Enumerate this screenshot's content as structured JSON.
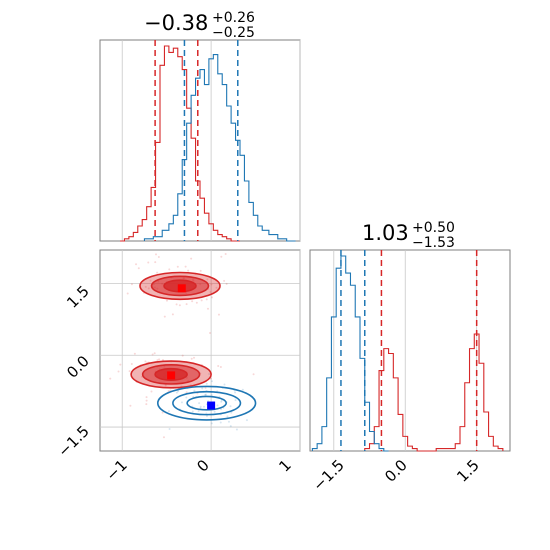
{
  "colors": {
    "red": "#d62728",
    "blue": "#1f77b4",
    "grid": "#c8c8c8",
    "frame": "#7f7f7f"
  },
  "chart_data": [
    {
      "panel": "marginal-x1",
      "type": "histogram-step",
      "title": {
        "value": "−0.38",
        "sup": "+0.26",
        "sub": "−0.25"
      },
      "xlim": [
        -1.25,
        1.0
      ],
      "series": [
        {
          "color": "red",
          "quantile_lines": [
            -0.63,
            -0.15
          ],
          "x": [
            -1.0,
            -0.95,
            -0.9,
            -0.85,
            -0.8,
            -0.75,
            -0.7,
            -0.65,
            -0.6,
            -0.55,
            -0.5,
            -0.45,
            -0.4,
            -0.35,
            -0.3,
            -0.25,
            -0.2,
            -0.15,
            -0.1,
            -0.05,
            0.0,
            0.05,
            0.1,
            0.15,
            0.2,
            0.25,
            0.3
          ],
          "y": [
            0,
            1,
            2,
            4,
            7,
            10,
            16,
            25,
            46,
            82,
            91,
            88,
            90,
            86,
            80,
            62,
            48,
            28,
            20,
            13,
            8,
            5,
            3,
            2,
            1,
            0,
            0
          ]
        },
        {
          "color": "blue",
          "quantile_lines": [
            -0.3,
            0.3
          ],
          "x": [
            -0.7,
            -0.6,
            -0.5,
            -0.45,
            -0.4,
            -0.35,
            -0.3,
            -0.25,
            -0.2,
            -0.15,
            -0.1,
            -0.05,
            0.0,
            0.05,
            0.1,
            0.15,
            0.2,
            0.25,
            0.3,
            0.35,
            0.4,
            0.45,
            0.5,
            0.55,
            0.6,
            0.7,
            0.8,
            0.9
          ],
          "y": [
            1,
            2,
            5,
            8,
            12,
            22,
            38,
            55,
            68,
            76,
            80,
            73,
            85,
            87,
            78,
            73,
            63,
            55,
            47,
            40,
            28,
            18,
            12,
            7,
            5,
            3,
            1,
            0
          ]
        }
      ]
    },
    {
      "panel": "marginal-x2",
      "type": "histogram-step",
      "title": {
        "value": "1.03",
        "sup": "+0.50",
        "sub": "−1.53"
      },
      "xlim": [
        -2.0,
        2.2
      ],
      "xticks": [
        "−1.5",
        "0.0",
        "1.5"
      ],
      "series": [
        {
          "color": "red",
          "quantile_lines": [
            -0.5,
            1.5
          ],
          "x": [
            -0.8,
            -0.7,
            -0.6,
            -0.5,
            -0.4,
            -0.3,
            -0.2,
            -0.1,
            0.0,
            0.1,
            0.2,
            0.3,
            1.0,
            1.1,
            1.2,
            1.3,
            1.4,
            1.5,
            1.6,
            1.7,
            1.8,
            1.9,
            2.0
          ],
          "y": [
            1,
            3,
            10,
            33,
            42,
            40,
            30,
            15,
            6,
            2,
            1,
            0,
            1,
            3,
            10,
            28,
            42,
            48,
            36,
            16,
            6,
            2,
            1
          ]
        },
        {
          "color": "blue",
          "quantile_lines": [
            -1.35,
            -0.85
          ],
          "x": [
            -1.9,
            -1.8,
            -1.7,
            -1.6,
            -1.5,
            -1.4,
            -1.3,
            -1.2,
            -1.1,
            -1.0,
            -0.9,
            -0.8,
            -0.7,
            -0.6,
            -0.5,
            -0.4
          ],
          "y": [
            1,
            3,
            10,
            30,
            55,
            75,
            80,
            73,
            68,
            55,
            38,
            20,
            8,
            3,
            1,
            0
          ]
        }
      ]
    },
    {
      "panel": "joint",
      "type": "contour-scatter",
      "xlim": [
        -1.25,
        1.0
      ],
      "ylim": [
        -2.0,
        2.2
      ],
      "xticks": [
        "−1",
        "0",
        "1"
      ],
      "yticks": [
        "−1.5",
        "0.0",
        "1.5"
      ],
      "series": [
        {
          "color": "red",
          "filled": true,
          "centers": [
            [
              -0.35,
              1.45
            ],
            [
              -0.45,
              -0.4
            ]
          ],
          "markers": [
            [
              -0.33,
              1.4
            ],
            [
              -0.45,
              -0.42
            ]
          ]
        },
        {
          "color": "blue",
          "filled": false,
          "centers": [
            [
              -0.05,
              -1.0
            ]
          ],
          "markers": [
            [
              0.0,
              -1.05
            ]
          ]
        }
      ]
    }
  ]
}
